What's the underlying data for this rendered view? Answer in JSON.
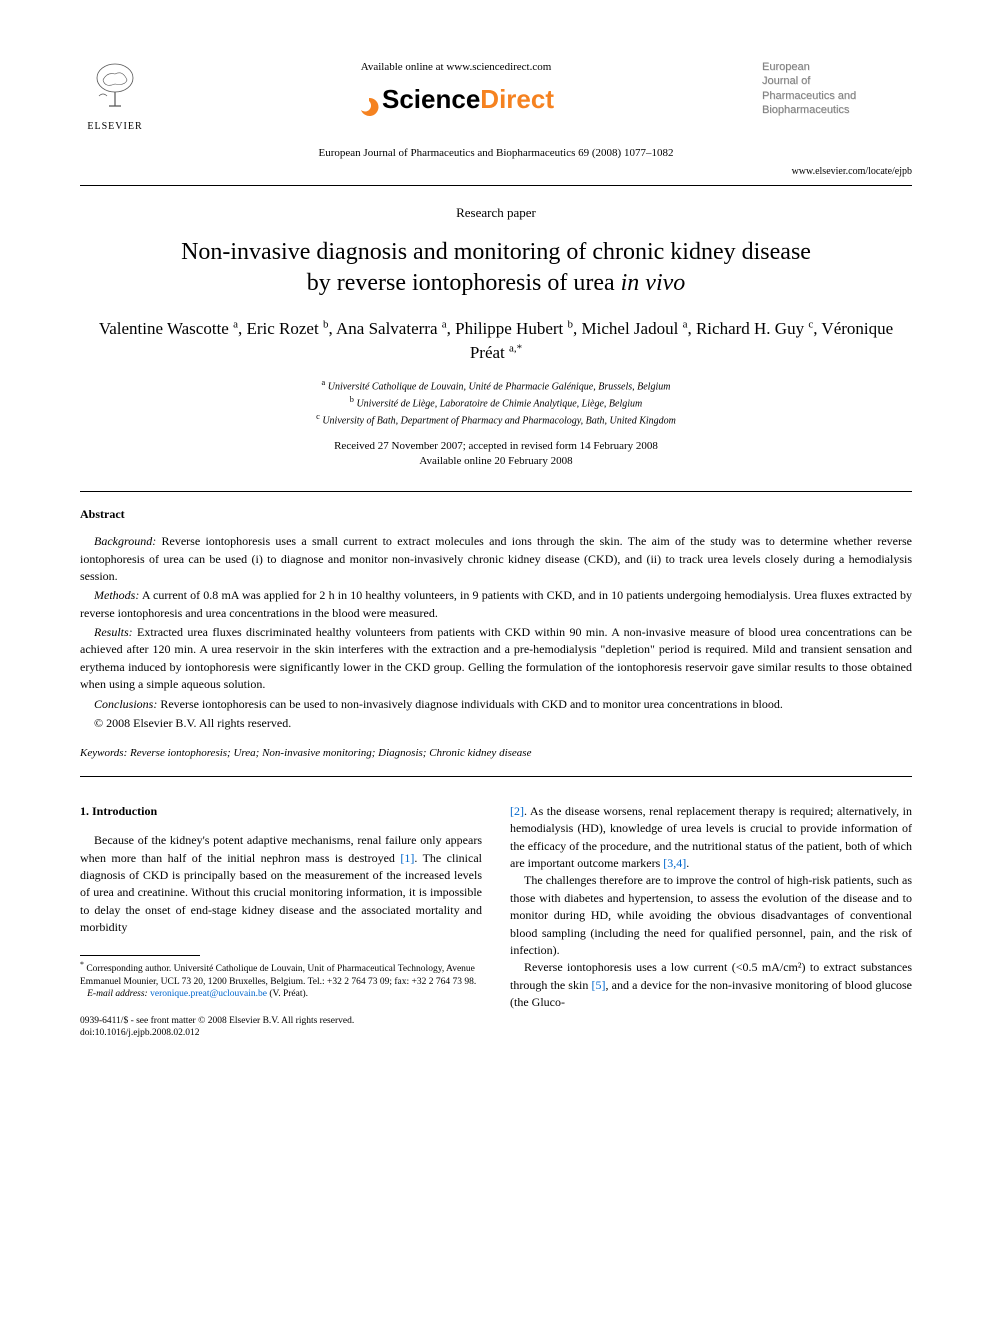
{
  "header": {
    "elsevier_label": "ELSEVIER",
    "available_online": "Available online at www.sciencedirect.com",
    "sd_brand_a": "Science",
    "sd_brand_b": "Direct",
    "journal_name_lines": [
      "European",
      "Journal of",
      "Pharmaceutics and",
      "Biopharmaceutics"
    ],
    "citation": "European Journal of Pharmaceutics and Biopharmaceutics 69 (2008) 1077–1082",
    "journal_url": "www.elsevier.com/locate/ejpb"
  },
  "paper": {
    "type": "Research paper",
    "title_line1": "Non-invasive diagnosis and monitoring of chronic kidney disease",
    "title_line2_a": "by reverse iontophoresis of urea ",
    "title_line2_b": "in vivo",
    "authors_html": "Valentine Wascotte <sup>a</sup>, Eric Rozet <sup>b</sup>, Ana Salvaterra <sup>a</sup>, Philippe Hubert <sup>b</sup>, Michel Jadoul <sup>a</sup>, Richard H. Guy <sup>c</sup>, Véronique Préat <sup>a,*</sup>",
    "affil_a": "Université Catholique de Louvain, Unité de Pharmacie Galénique, Brussels, Belgium",
    "affil_b": "Université de Liège, Laboratoire de Chimie Analytique, Liège, Belgium",
    "affil_c": "University of Bath, Department of Pharmacy and Pharmacology, Bath, United Kingdom",
    "dates_line1": "Received 27 November 2007; accepted in revised form 14 February 2008",
    "dates_line2": "Available online 20 February 2008"
  },
  "abstract": {
    "heading": "Abstract",
    "background_label": "Background:",
    "background": " Reverse iontophoresis uses a small current to extract molecules and ions through the skin. The aim of the study was to determine whether reverse iontophoresis of urea can be used (i) to diagnose and monitor non-invasively chronic kidney disease (CKD), and (ii) to track urea levels closely during a hemodialysis session.",
    "methods_label": "Methods:",
    "methods": " A current of 0.8 mA was applied for 2 h in 10 healthy volunteers, in 9 patients with CKD, and in 10 patients undergoing hemodialysis. Urea fluxes extracted by reverse iontophoresis and urea concentrations in the blood were measured.",
    "results_label": "Results:",
    "results": " Extracted urea fluxes discriminated healthy volunteers from patients with CKD within 90 min. A non-invasive measure of blood urea concentrations can be achieved after 120 min. A urea reservoir in the skin interferes with the extraction and a pre-hemodialysis \"depletion\" period is required. Mild and transient sensation and erythema induced by iontophoresis were significantly lower in the CKD group. Gelling the formulation of the iontophoresis reservoir gave similar results to those obtained when using a simple aqueous solution.",
    "conclusions_label": "Conclusions:",
    "conclusions": " Reverse iontophoresis can be used to non-invasively diagnose individuals with CKD and to monitor urea concentrations in blood.",
    "copyright": "© 2008 Elsevier B.V. All rights reserved."
  },
  "keywords": {
    "label": "Keywords:",
    "text": " Reverse iontophoresis; Urea; Non-invasive monitoring; Diagnosis; Chronic kidney disease"
  },
  "body": {
    "intro_heading": "1. Introduction",
    "col1_p1_a": "Because of the kidney's potent adaptive mechanisms, renal failure only appears when more than half of the initial nephron mass is destroyed ",
    "ref1": "[1]",
    "col1_p1_b": ". The clinical diagnosis of CKD is principally based on the measurement of the increased levels of urea and creatinine. Without this crucial monitoring information, it is impossible to delay the onset of end-stage kidney disease and the associated mortality and morbidity",
    "col2_p1_ref2": "[2]",
    "col2_p1_a": ". As the disease worsens, renal replacement therapy is required; alternatively, in hemodialysis (HD), knowledge of urea levels is crucial to provide information of the efficacy of the procedure, and the nutritional status of the patient, both of which are important outcome markers ",
    "ref34": "[3,4]",
    "col2_p1_b": ".",
    "col2_p2": "The challenges therefore are to improve the control of high-risk patients, such as those with diabetes and hypertension, to assess the evolution of the disease and to monitor during HD, while avoiding the obvious disadvantages of conventional blood sampling (including the need for qualified personnel, pain, and the risk of infection).",
    "col2_p3_a": "Reverse iontophoresis uses a low current (<0.5 mA/cm²) to extract substances through the skin ",
    "ref5": "[5]",
    "col2_p3_b": ", and a device for the non-invasive monitoring of blood glucose (the Gluco-"
  },
  "footnote": {
    "corr": "Corresponding author. Université Catholique de Louvain, Unit of Pharmaceutical Technology, Avenue Emmanuel Mounier, UCL 73 20, 1200 Bruxelles, Belgium. Tel.: +32 2 764 73 09; fax: +32 2 764 73 98.",
    "email_label": "E-mail address:",
    "email": "veronique.preat@uclouvain.be",
    "email_suffix": " (V. Préat)."
  },
  "bottom": {
    "issn": "0939-6411/$ - see front matter © 2008 Elsevier B.V. All rights reserved.",
    "doi": "doi:10.1016/j.ejpb.2008.02.012"
  },
  "colors": {
    "link": "#0066cc",
    "sd_orange": "#f58220",
    "journal_gray": "#808080"
  }
}
